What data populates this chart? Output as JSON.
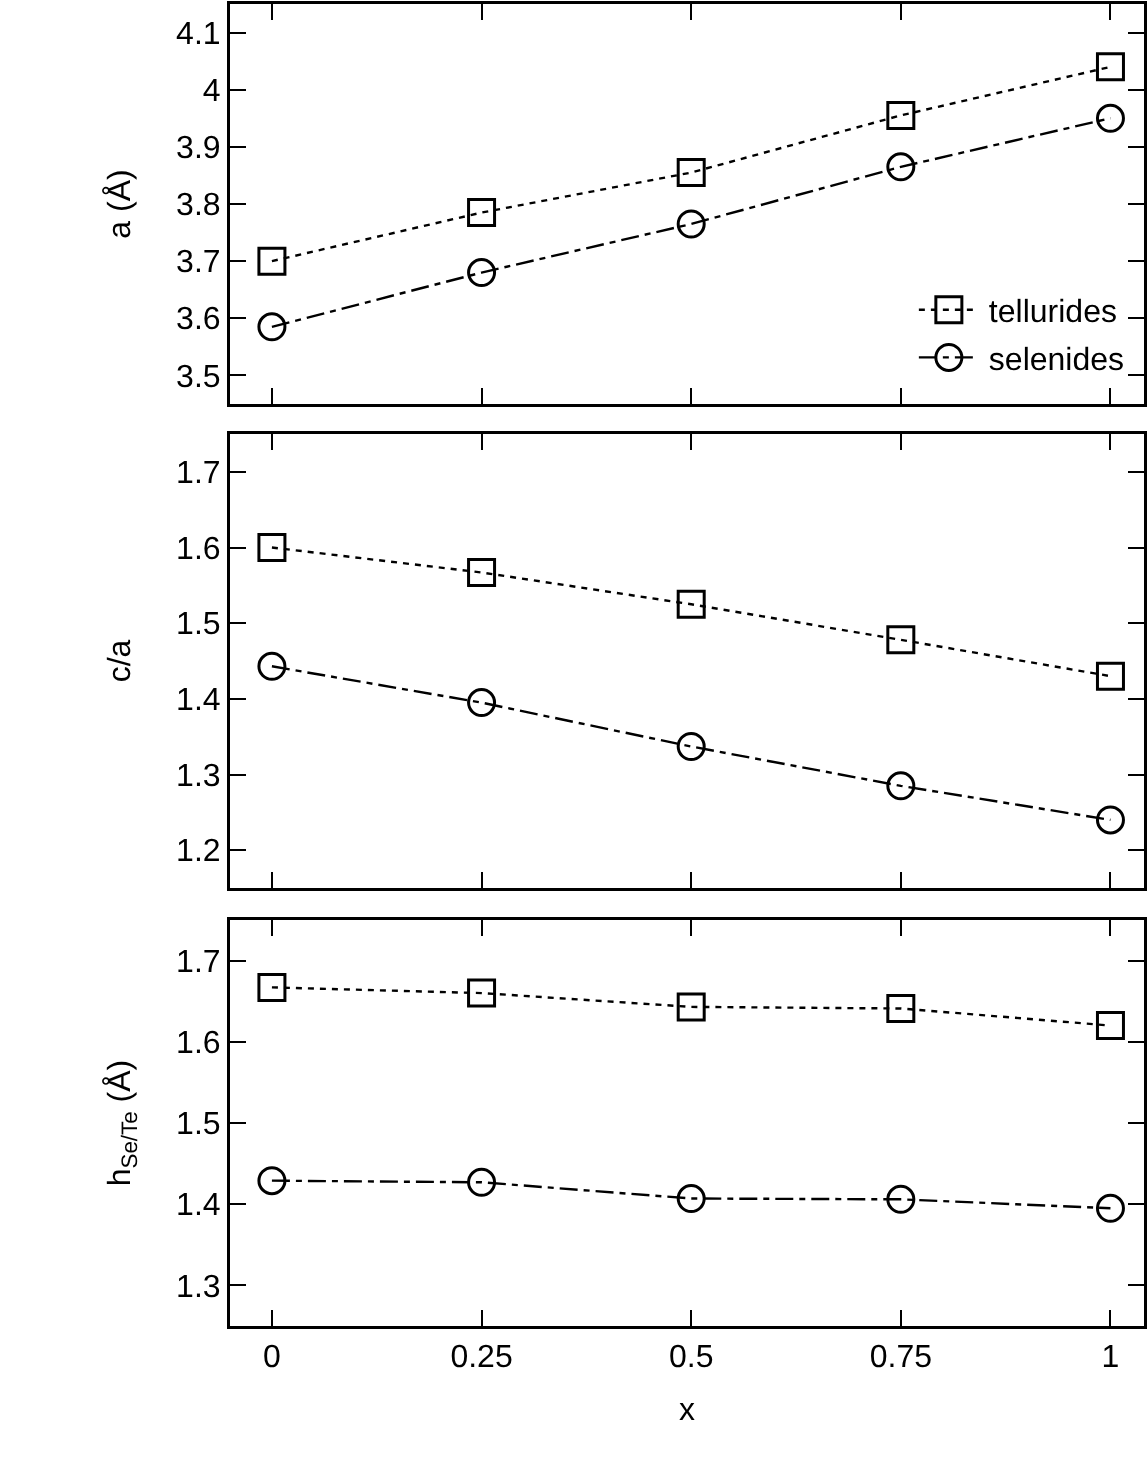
{
  "chart_data": [
    {
      "type": "line",
      "ylabel": "a (Å)",
      "x": [
        0,
        0.25,
        0.5,
        0.75,
        1
      ],
      "xlim": [
        -0.05,
        1.04
      ],
      "xticks": [
        0,
        0.25,
        0.5,
        0.75,
        1
      ],
      "ylim": [
        3.45,
        4.15
      ],
      "yticks": [
        {
          "value": 3.5,
          "label": "3.5"
        },
        {
          "value": 3.6,
          "label": "3.6"
        },
        {
          "value": 3.7,
          "label": "3.7"
        },
        {
          "value": 3.8,
          "label": "3.8"
        },
        {
          "value": 3.9,
          "label": "3.9"
        },
        {
          "value": 4,
          "label": "4"
        },
        {
          "value": 4.1,
          "label": "4.1"
        }
      ],
      "tick_labels": "y",
      "grid": false,
      "legend": "bottom right",
      "series": [
        {
          "name": "tellurides",
          "color": "#000000",
          "marker": "square",
          "line_style": "dotted",
          "values": [
            3.7,
            3.785,
            3.855,
            3.955,
            4.04
          ]
        },
        {
          "name": "selenides",
          "color": "#000000",
          "marker": "circle",
          "line_style": "dashdot",
          "values": [
            3.585,
            3.68,
            3.765,
            3.865,
            3.95
          ]
        }
      ]
    },
    {
      "type": "line",
      "ylabel": "c/a",
      "x": [
        0,
        0.25,
        0.5,
        0.75,
        1
      ],
      "xlim": [
        -0.05,
        1.04
      ],
      "xticks": [
        0,
        0.25,
        0.5,
        0.75,
        1
      ],
      "ylim": [
        1.15,
        1.75
      ],
      "yticks": [
        {
          "value": 1.2,
          "label": "1.2"
        },
        {
          "value": 1.3,
          "label": "1.3"
        },
        {
          "value": 1.4,
          "label": "1.4"
        },
        {
          "value": 1.5,
          "label": "1.5"
        },
        {
          "value": 1.6,
          "label": "1.6"
        },
        {
          "value": 1.7,
          "label": "1.7"
        }
      ],
      "tick_labels": "y",
      "grid": false,
      "legend": false,
      "series": [
        {
          "color": "#000000",
          "marker": "square",
          "line_style": "dotted",
          "values": [
            1.6,
            1.567,
            1.525,
            1.478,
            1.43
          ]
        },
        {
          "color": "#000000",
          "marker": "circle",
          "line_style": "dashdot",
          "values": [
            1.443,
            1.395,
            1.337,
            1.285,
            1.24
          ]
        }
      ]
    },
    {
      "type": "line",
      "xlabel": "x",
      "ylabel": "h$_{Se/Te}$ (Å)",
      "x": [
        0,
        0.25,
        0.5,
        0.75,
        1
      ],
      "xlim": [
        -0.05,
        1.04
      ],
      "xticks": [
        0,
        0.25,
        0.5,
        0.75,
        1
      ],
      "ylim": [
        1.25,
        1.75
      ],
      "yticks": [
        {
          "value": 1.3,
          "label": "1.3"
        },
        {
          "value": 1.4,
          "label": "1.4"
        },
        {
          "value": 1.5,
          "label": "1.5"
        },
        {
          "value": 1.6,
          "label": "1.6"
        },
        {
          "value": 1.7,
          "label": "1.7"
        }
      ],
      "grid": false,
      "legend": false,
      "series": [
        {
          "color": "#000000",
          "marker": "square",
          "line_style": "dotted",
          "values": [
            1.667,
            1.66,
            1.643,
            1.641,
            1.62
          ]
        },
        {
          "color": "#000000",
          "marker": "circle",
          "line_style": "dashdot",
          "values": [
            1.429,
            1.427,
            1.407,
            1.406,
            1.395
          ]
        }
      ]
    }
  ]
}
